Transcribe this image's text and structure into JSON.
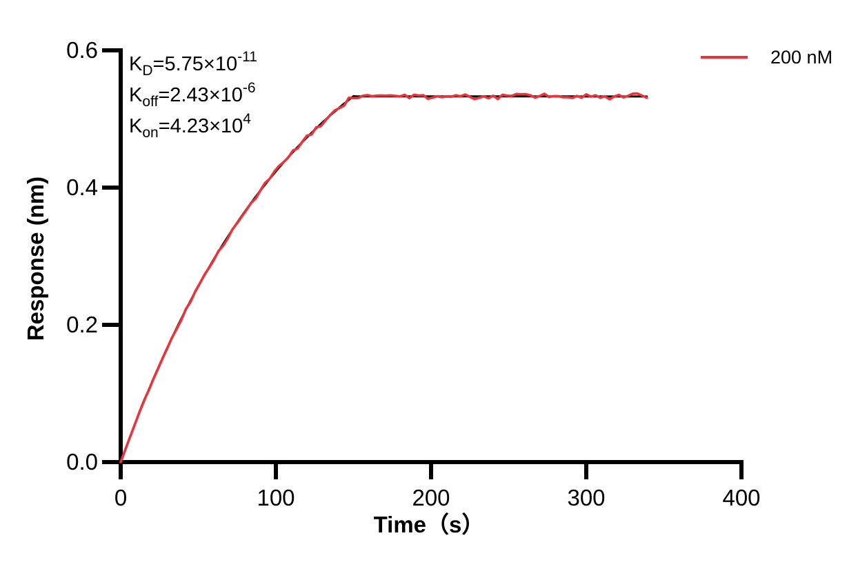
{
  "chart_data": {
    "type": "line",
    "title": "",
    "xlabel": "Time（s）",
    "ylabel": "Response (nm)",
    "xlim": [
      0,
      400
    ],
    "ylim": [
      0.0,
      0.6
    ],
    "grid": false,
    "background": "#FFFFFF",
    "axis_color": "#000000",
    "xticks": {
      "values": [
        0,
        100,
        200,
        300,
        400
      ],
      "labels": [
        "0",
        "100",
        "200",
        "300",
        "400"
      ]
    },
    "yticks": {
      "values": [
        0.0,
        0.2,
        0.4,
        0.6
      ],
      "labels": [
        "0.0",
        "0.2",
        "0.4",
        "0.6"
      ]
    },
    "annotations": [
      {
        "base": "K",
        "sub": "D",
        "mid": "=5.75×10",
        "sup": "-11"
      },
      {
        "base": "K",
        "sub": "off",
        "mid": "=2.43×10",
        "sup": "-6"
      },
      {
        "base": "K",
        "sub": "on",
        "mid": "=4.23×10",
        "sup": "4"
      }
    ],
    "legend": {
      "position": "top-right",
      "entries": [
        {
          "label": "200 nM",
          "color": "#EA333A"
        }
      ]
    },
    "series": [
      {
        "name": "kinetic-fit",
        "color": "#000000",
        "stroke_width": 3,
        "model": {
          "type": "1:1-binding-association-dissociation",
          "rmax_nm": 0.74,
          "kobs_per_s": 0.0085,
          "assoc_end_s": 150,
          "plateau_nm": 0.533,
          "koff_per_s": 2.43e-06,
          "end_s": 339
        },
        "points": [
          [
            0,
            0.0
          ],
          [
            10,
            0.06
          ],
          [
            20,
            0.116
          ],
          [
            30,
            0.167
          ],
          [
            40,
            0.213
          ],
          [
            50,
            0.256
          ],
          [
            60,
            0.296
          ],
          [
            70,
            0.332
          ],
          [
            80,
            0.365
          ],
          [
            90,
            0.396
          ],
          [
            100,
            0.424
          ],
          [
            110,
            0.45
          ],
          [
            120,
            0.473
          ],
          [
            130,
            0.495
          ],
          [
            140,
            0.515
          ],
          [
            150,
            0.533
          ],
          [
            175,
            0.533
          ],
          [
            200,
            0.533
          ],
          [
            225,
            0.533
          ],
          [
            250,
            0.533
          ],
          [
            275,
            0.533
          ],
          [
            300,
            0.533
          ],
          [
            320,
            0.533
          ],
          [
            339,
            0.533
          ]
        ]
      },
      {
        "name": "200 nM",
        "color": "#EA333A",
        "stroke_width": 3.6,
        "noise": {
          "amplitude_nm": 0.005,
          "seed": 97
        },
        "points": [
          [
            0,
            0.0
          ],
          [
            10,
            0.06
          ],
          [
            20,
            0.116
          ],
          [
            30,
            0.167
          ],
          [
            40,
            0.213
          ],
          [
            50,
            0.256
          ],
          [
            60,
            0.296
          ],
          [
            70,
            0.332
          ],
          [
            80,
            0.365
          ],
          [
            90,
            0.396
          ],
          [
            100,
            0.424
          ],
          [
            110,
            0.45
          ],
          [
            120,
            0.473
          ],
          [
            130,
            0.495
          ],
          [
            140,
            0.515
          ],
          [
            150,
            0.533
          ],
          [
            175,
            0.533
          ],
          [
            200,
            0.533
          ],
          [
            225,
            0.533
          ],
          [
            250,
            0.533
          ],
          [
            275,
            0.533
          ],
          [
            300,
            0.533
          ],
          [
            320,
            0.533
          ],
          [
            339,
            0.533
          ]
        ]
      }
    ]
  }
}
